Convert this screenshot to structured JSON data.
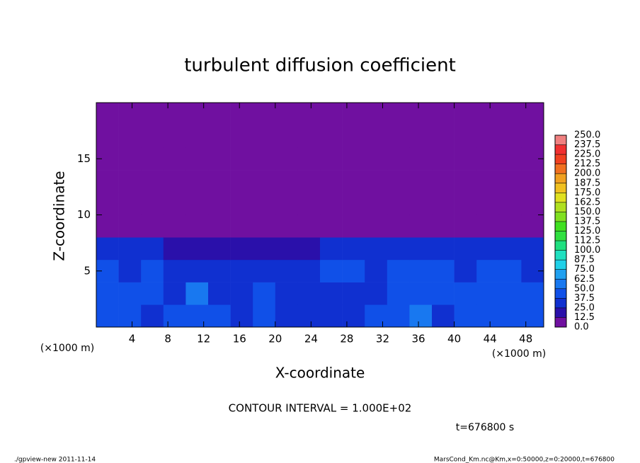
{
  "chart_data": {
    "type": "heatmap",
    "title": "turbulent diffusion coefficient",
    "xlabel": "X-coordinate",
    "ylabel": "Z-coordinate",
    "x_unit": "(×1000 m)",
    "y_unit": "(×1000 m)",
    "contour_note": "CONTOUR INTERVAL = 1.000E+02",
    "time_note": "t=676800 s",
    "footer_left": "./gpview-new  2011-11-14",
    "footer_right": "MarsCond_Km.nc@Km,x=0:50000,z=0:20000,t=676800",
    "xlim": [
      0,
      50
    ],
    "ylim": [
      0,
      20
    ],
    "xticks": [
      4,
      8,
      12,
      16,
      20,
      24,
      28,
      32,
      36,
      40,
      44,
      48
    ],
    "yticks": [
      5,
      10,
      15
    ],
    "x_edges": [
      0,
      2.5,
      5,
      7.5,
      10,
      12.5,
      15,
      17.5,
      20,
      22.5,
      25,
      27.5,
      30,
      32.5,
      35,
      37.5,
      40,
      42.5,
      45,
      47.5,
      50
    ],
    "y_edges": [
      0,
      2,
      4,
      6,
      8,
      10,
      12,
      14,
      16,
      18,
      20
    ],
    "values": [
      [
        45,
        40,
        35,
        38,
        42,
        40,
        35,
        38,
        30,
        32,
        35,
        30,
        45,
        40,
        50,
        35,
        40,
        38,
        42,
        40
      ],
      [
        40,
        45,
        38,
        30,
        50,
        35,
        30,
        40,
        28,
        25,
        30,
        35,
        32,
        40,
        45,
        38,
        42,
        40,
        45,
        38
      ],
      [
        38,
        35,
        40,
        30,
        35,
        32,
        28,
        35,
        30,
        35,
        38,
        40,
        35,
        38,
        45,
        40,
        35,
        42,
        38,
        35
      ],
      [
        25,
        30,
        28,
        20,
        22,
        18,
        20,
        22,
        15,
        18,
        30,
        35,
        32,
        30,
        35,
        30,
        25,
        28,
        30,
        25
      ],
      [
        0,
        0,
        0,
        0,
        0,
        0,
        0,
        0,
        0,
        5,
        10,
        12,
        10,
        10,
        8,
        0,
        0,
        0,
        0,
        0
      ],
      [
        0,
        0,
        0,
        0,
        0,
        0,
        0,
        0,
        0,
        0,
        0,
        0,
        0,
        0,
        0,
        0,
        0,
        0,
        0,
        0
      ],
      [
        0,
        0,
        0,
        0,
        0,
        0,
        0,
        0,
        0,
        0,
        0,
        0,
        0,
        0,
        0,
        0,
        0,
        0,
        0,
        0
      ],
      [
        0,
        0,
        0,
        0,
        0,
        0,
        0,
        0,
        0,
        0,
        0,
        0,
        0,
        0,
        0,
        0,
        0,
        0,
        0,
        0
      ],
      [
        0,
        0,
        0,
        0,
        0,
        0,
        0,
        0,
        0,
        0,
        0,
        0,
        0,
        0,
        0,
        0,
        0,
        0,
        0,
        0
      ],
      [
        0,
        0,
        0,
        0,
        0,
        0,
        0,
        0,
        0,
        0,
        0,
        0,
        0,
        0,
        0,
        0,
        0,
        0,
        0,
        0
      ]
    ],
    "levels": [
      {
        "value": 0,
        "label": "0.0"
      },
      12.5,
      25,
      37.5,
      50,
      62.5,
      75,
      87.5,
      100,
      112.5,
      125,
      137.5,
      150,
      162.5,
      175,
      187.5,
      200,
      212.5,
      225,
      237.5,
      250
    ],
    "level_labels": [
      "0.0",
      "12.5",
      "25.0",
      "37.5",
      "50.0",
      "62.5",
      "75.0",
      "87.5",
      "100.0",
      "112.5",
      "125.0",
      "137.5",
      "150.0",
      "162.5",
      "175.0",
      "187.5",
      "200.0",
      "212.5",
      "225.0",
      "237.5",
      "250.0"
    ],
    "colors": [
      "#7010a0",
      "#2a10aa",
      "#1030d0",
      "#1050e8",
      "#1878f0",
      "#20a0f0",
      "#20d0e8",
      "#20e0c0",
      "#20e080",
      "#30e040",
      "#40e020",
      "#80e020",
      "#b0e020",
      "#e0e020",
      "#f0c020",
      "#f0a020",
      "#f07020",
      "#f04020",
      "#f03030",
      "#f08080"
    ]
  }
}
